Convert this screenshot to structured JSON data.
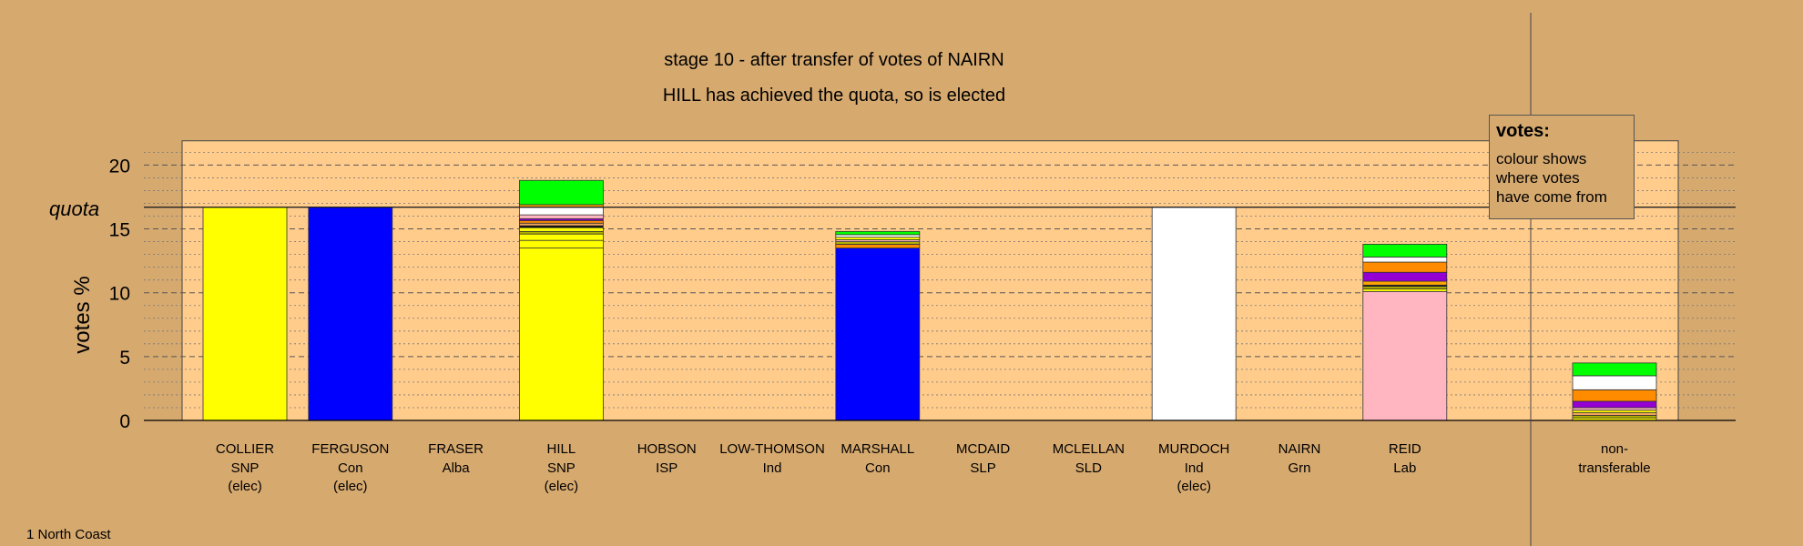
{
  "chart_data": {
    "type": "bar",
    "title": "stage 10 - after transfer of votes of NAIRN",
    "subtitle": "HILL has achieved the quota, so is elected",
    "ylabel": "votes %",
    "quota_label": "quota",
    "quota": 16.7,
    "ylim": [
      0,
      22
    ],
    "yticks": [
      0,
      5,
      10,
      15,
      20
    ],
    "candidates": [
      {
        "name": "COLLIER",
        "party": "SNP",
        "status": "(elec)",
        "segments": [
          {
            "color": "#ffff00",
            "value": 16.7
          }
        ]
      },
      {
        "name": "FERGUSON",
        "party": "Con",
        "status": "(elec)",
        "segments": [
          {
            "color": "#0000ff",
            "value": 16.7
          }
        ]
      },
      {
        "name": "FRASER",
        "party": "Alba",
        "status": "",
        "segments": []
      },
      {
        "name": "HILL",
        "party": "SNP",
        "status": "(elec)",
        "segments": [
          {
            "color": "#ffff00",
            "value": 13.5
          },
          {
            "color": "#ffff00",
            "value": 0.6
          },
          {
            "color": "#ffff00",
            "value": 0.5
          },
          {
            "color": "#b0b000",
            "value": 0.2
          },
          {
            "color": "#ffff00",
            "value": 0.3
          },
          {
            "color": "#000000",
            "value": 0.15
          },
          {
            "color": "#f4a460",
            "value": 0.2
          },
          {
            "color": "#ff8c00",
            "value": 0.2
          },
          {
            "color": "#9400d3",
            "value": 0.15
          },
          {
            "color": "#ffb6c1",
            "value": 0.3
          },
          {
            "color": "#ffffff",
            "value": 0.6
          },
          {
            "color": "#ffa500",
            "value": 0.2
          },
          {
            "color": "#00ff00",
            "value": 1.9
          }
        ]
      },
      {
        "name": "HOBSON",
        "party": "ISP",
        "status": "",
        "segments": []
      },
      {
        "name": "LOW-THOMSON",
        "party": "Ind",
        "status": "",
        "segments": []
      },
      {
        "name": "MARSHALL",
        "party": "Con",
        "status": "",
        "segments": [
          {
            "color": "#0000ff",
            "value": 13.5
          },
          {
            "color": "#ff8c00",
            "value": 0.3
          },
          {
            "color": "#b0b000",
            "value": 0.2
          },
          {
            "color": "#ffb6c1",
            "value": 0.15
          },
          {
            "color": "#ffff00",
            "value": 0.2
          },
          {
            "color": "#ffffff",
            "value": 0.2
          },
          {
            "color": "#00ff00",
            "value": 0.25
          }
        ]
      },
      {
        "name": "MCDAID",
        "party": "SLP",
        "status": "",
        "segments": []
      },
      {
        "name": "MCLELLAN",
        "party": "SLD",
        "status": "",
        "segments": []
      },
      {
        "name": "MURDOCH",
        "party": "Ind",
        "status": "(elec)",
        "segments": [
          {
            "color": "#ffffff",
            "value": 16.7
          }
        ]
      },
      {
        "name": "NAIRN",
        "party": "Grn",
        "status": "",
        "segments": []
      },
      {
        "name": "REID",
        "party": "Lab",
        "status": "",
        "segments": [
          {
            "color": "#ffb6c1",
            "value": 10.1
          },
          {
            "color": "#ffff00",
            "value": 0.2
          },
          {
            "color": "#b0b000",
            "value": 0.2
          },
          {
            "color": "#000000",
            "value": 0.1
          },
          {
            "color": "#ffa500",
            "value": 0.3
          },
          {
            "color": "#9400d3",
            "value": 0.7
          },
          {
            "color": "#ff8c00",
            "value": 0.8
          },
          {
            "color": "#ffffff",
            "value": 0.4
          },
          {
            "color": "#00ff00",
            "value": 1.0
          }
        ]
      }
    ],
    "nontransferable": {
      "label_line1": "non-",
      "label_line2": "transferable",
      "segments": [
        {
          "color": "#ffff00",
          "value": 0.2
        },
        {
          "color": "#b0b000",
          "value": 0.2
        },
        {
          "color": "#f4a460",
          "value": 0.2
        },
        {
          "color": "#ffff00",
          "value": 0.2
        },
        {
          "color": "#ffb6c1",
          "value": 0.2
        },
        {
          "color": "#9400d3",
          "value": 0.5
        },
        {
          "color": "#ff8c00",
          "value": 0.9
        },
        {
          "color": "#ffffff",
          "value": 1.1
        },
        {
          "color": "#00ff00",
          "value": 1.0
        }
      ]
    },
    "colors": {
      "background": "#d6a96f",
      "plot_panel": "#ffcc8c"
    },
    "grid": true
  },
  "legend": {
    "title": "votes:",
    "line1": "colour shows",
    "line2": "where votes",
    "line3": "have come from"
  },
  "footer": "1 North Coast"
}
